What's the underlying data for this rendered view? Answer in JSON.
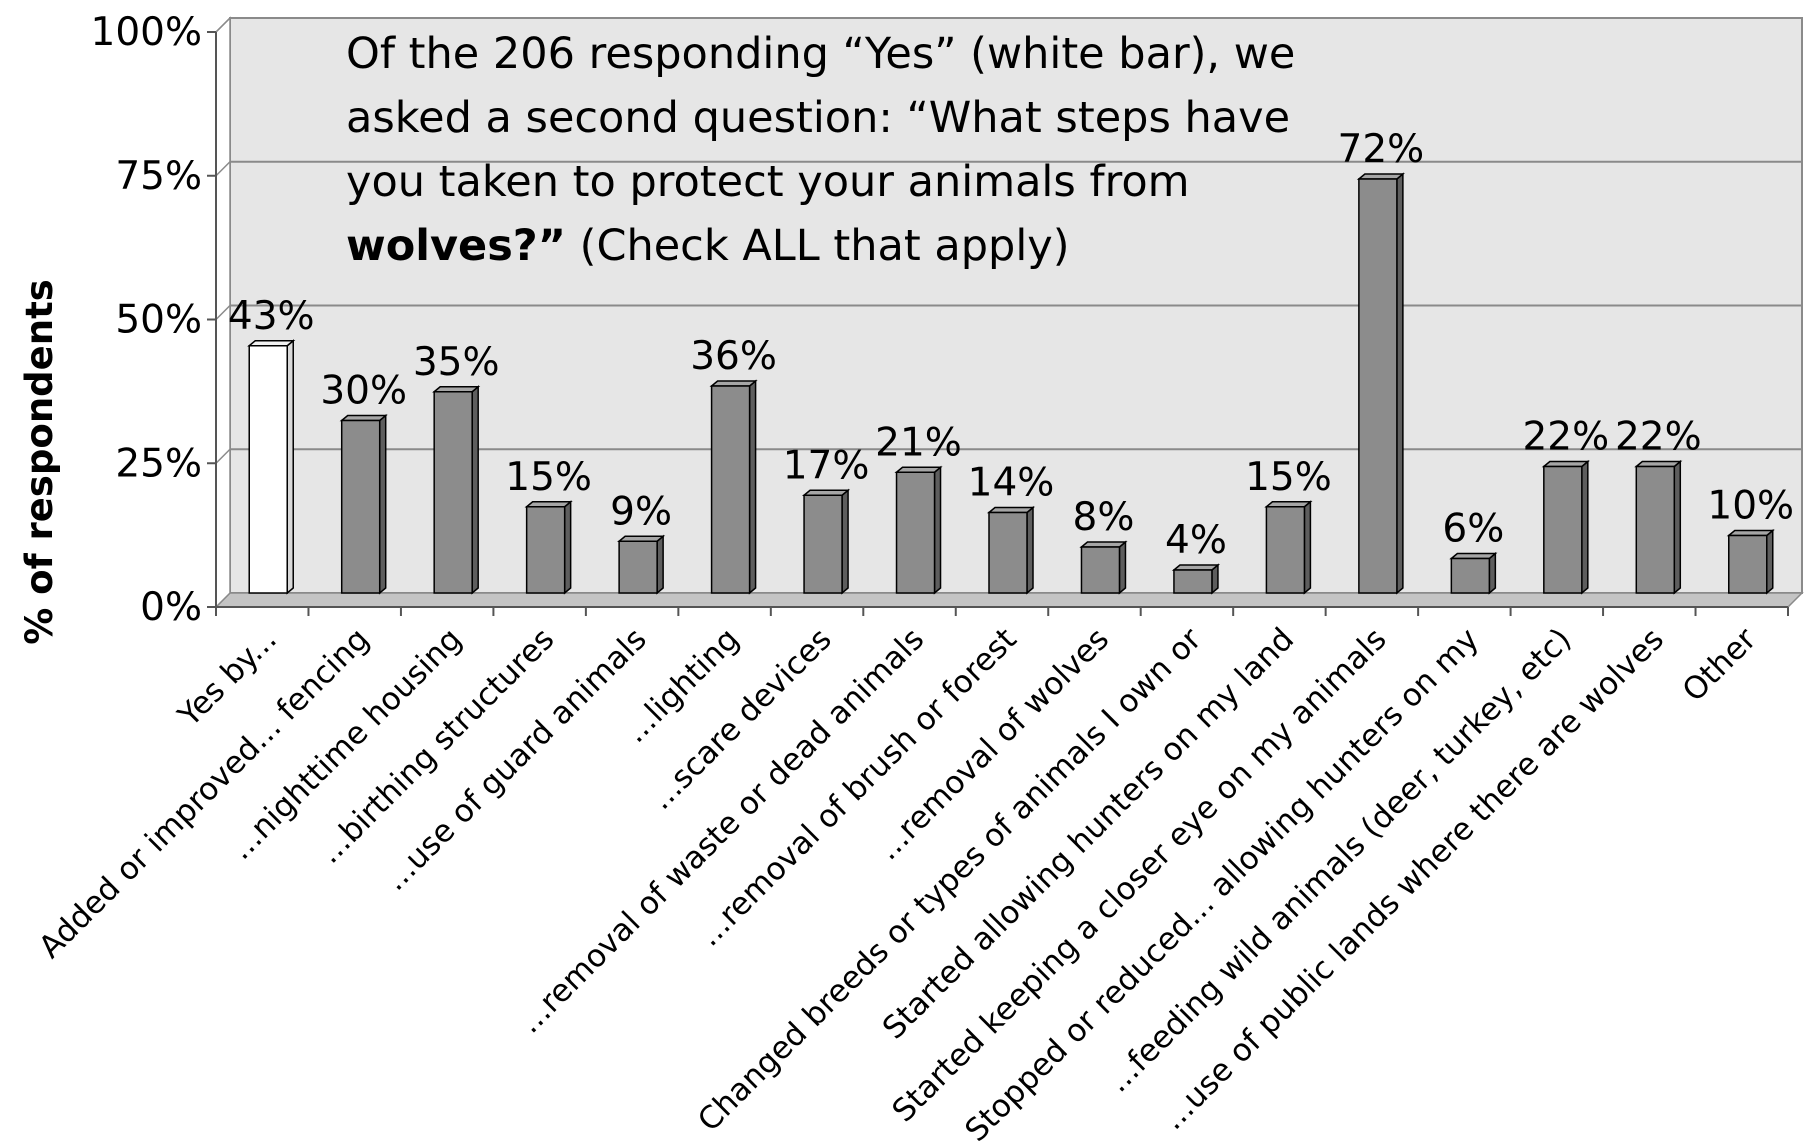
{
  "chart_data": {
    "type": "bar",
    "title": "",
    "xlabel": "",
    "ylabel": "% of respondents",
    "ylim": [
      0,
      100
    ],
    "yticks": [
      "0%",
      "25%",
      "50%",
      "75%",
      "100%"
    ],
    "grid": true,
    "bar_colors": {
      "highlight": "#ffffff",
      "default": "#8c8c8c"
    },
    "plot_background": "#e6e6e6",
    "categories": [
      "Yes by...",
      "Added or improved... fencing",
      "...nighttime housing",
      "...birthing structures",
      "...use of guard animals",
      "...lighting",
      "...scare devices",
      "...removal of waste or dead animals",
      "...removal of brush or forest",
      "...removal of wolves",
      "Changed breeds or types of animals I own or",
      "Started allowing hunters on my land",
      "Started keeping a closer eye on my animals",
      "Stopped or reduced... allowing hunters on my",
      "...feeding wild animals (deer, turkey, etc)",
      "...use of public lands where there are wolves",
      "Other"
    ],
    "values": [
      43,
      30,
      35,
      15,
      9,
      36,
      17,
      21,
      14,
      8,
      4,
      15,
      72,
      6,
      22,
      22,
      10
    ],
    "data_labels": [
      "43%",
      "30%",
      "35%",
      "15%",
      "9%",
      "36%",
      "17%",
      "21%",
      "14%",
      "8%",
      "4%",
      "15%",
      "72%",
      "6%",
      "22%",
      "22%",
      "10%"
    ],
    "highlighted_index": 0,
    "annotation": {
      "lines": [
        [
          {
            "text": "Of the 206 responding “Yes” (white bar), we",
            "bold": false
          }
        ],
        [
          {
            "text": "asked a second question: “What steps have",
            "bold": false
          }
        ],
        [
          {
            "text": "you taken to protect your animals from",
            "bold": false
          }
        ],
        [
          {
            "text": "wolves?”",
            "bold": true
          },
          {
            "text": " (Check ALL that apply)",
            "bold": false
          }
        ]
      ]
    }
  }
}
